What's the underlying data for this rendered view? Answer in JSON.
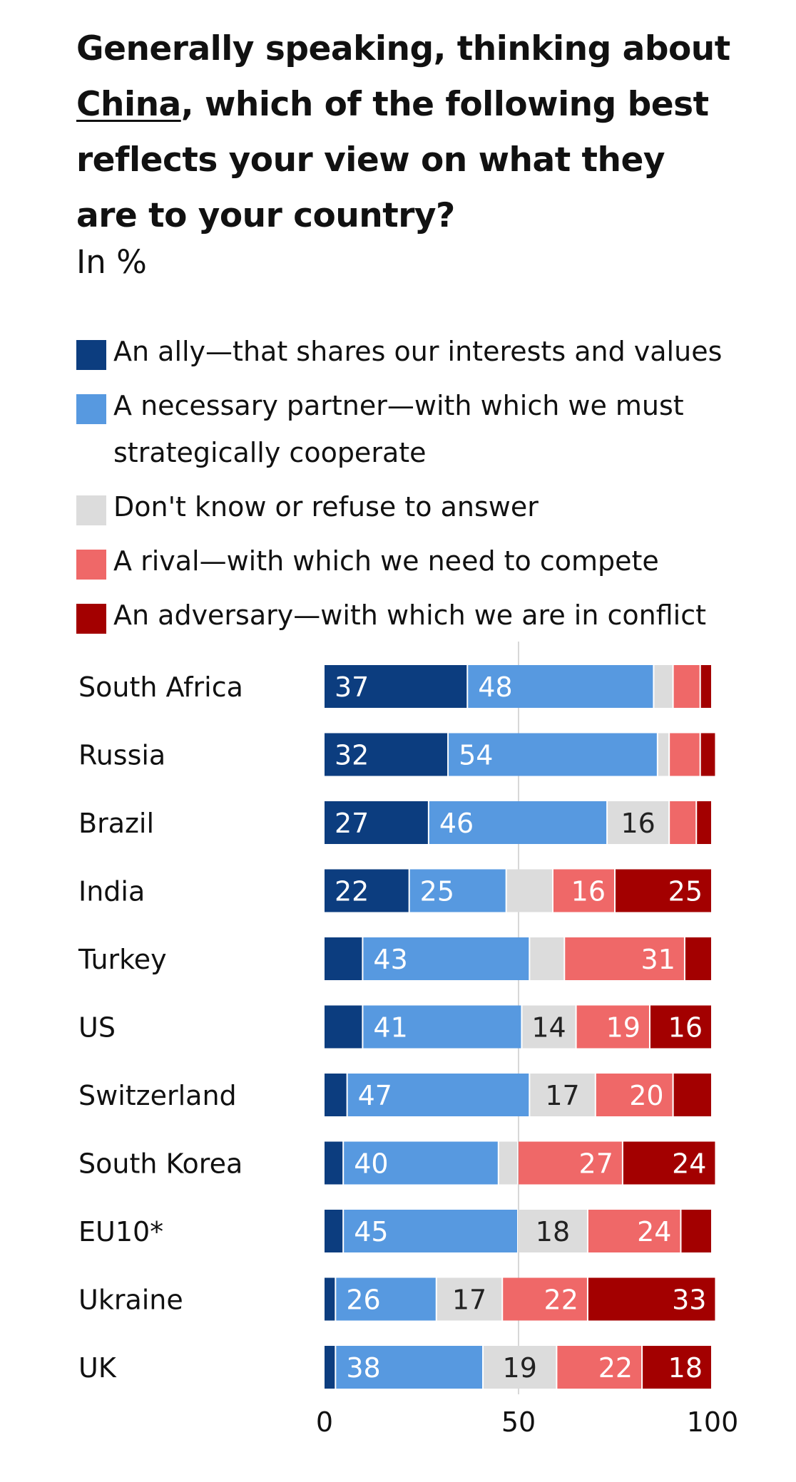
{
  "title": {
    "before": "Generally speaking, thinking about ",
    "underlined": "China",
    "after": ", which of the following best reflects your view on what they are to your country?"
  },
  "subtitle": "In %",
  "colors": {
    "ally": "#0c3d7f",
    "partner": "#5799e0",
    "dont_know": "#dcdcdc",
    "rival": "#ef6868",
    "adversary": "#a30000",
    "gridline": "#d8d8d8",
    "text_dark": "#222222",
    "text_light": "#ffffff"
  },
  "legend": [
    {
      "label": "An ally—that shares our interests and values",
      "color": "#0c3d7f"
    },
    {
      "label": "A necessary partner—with which we must strategically cooperate",
      "color": "#5799e0"
    },
    {
      "label": "Don't know or refuse to answer",
      "color": "#dcdcdc"
    },
    {
      "label": "A rival—with which we need to compete",
      "color": "#ef6868"
    },
    {
      "label": "An adversary—with which we are in conflict",
      "color": "#a30000"
    }
  ],
  "chart_data": {
    "type": "bar",
    "orientation": "horizontal",
    "stacked": true,
    "title": "Generally speaking, thinking about China, which of the following best reflects your view on what they are to your country?",
    "subtitle": "In %",
    "xlim": [
      0,
      100
    ],
    "xticks": [
      "0",
      "50",
      "100"
    ],
    "grid": true,
    "legend_position": "top",
    "categories": [
      "South Africa",
      "Russia",
      "Brazil",
      "India",
      "Turkey",
      "US",
      "Switzerland",
      "South Korea",
      "EU10*",
      "Ukraine",
      "UK"
    ],
    "series": [
      {
        "name": "An ally—that shares our interests and values",
        "color": "#0c3d7f",
        "values": [
          37,
          32,
          27,
          22,
          10,
          10,
          6,
          5,
          5,
          3,
          3
        ],
        "labels": [
          "37",
          "32",
          "27",
          "22",
          "",
          "",
          "",
          "",
          "",
          "",
          ""
        ]
      },
      {
        "name": "A necessary partner—with which we must strategically cooperate",
        "color": "#5799e0",
        "values": [
          48,
          54,
          46,
          25,
          43,
          41,
          47,
          40,
          45,
          26,
          38
        ],
        "labels": [
          "48",
          "54",
          "46",
          "25",
          "43",
          "41",
          "47",
          "40",
          "45",
          "26",
          "38"
        ]
      },
      {
        "name": "Don't know or refuse to answer",
        "color": "#dcdcdc",
        "values": [
          5,
          3,
          16,
          12,
          9,
          14,
          17,
          5,
          18,
          17,
          19
        ],
        "labels": [
          "",
          "",
          "16",
          "",
          "",
          "14",
          "17",
          "",
          "18",
          "17",
          "19"
        ]
      },
      {
        "name": "A rival—with which we need to compete",
        "color": "#ef6868",
        "values": [
          7,
          8,
          7,
          16,
          31,
          19,
          20,
          27,
          24,
          22,
          22
        ],
        "labels": [
          "",
          "",
          "",
          "16",
          "31",
          "19",
          "20",
          "27",
          "24",
          "22",
          "22"
        ]
      },
      {
        "name": "An adversary—with which we are in conflict",
        "color": "#a30000",
        "values": [
          3,
          4,
          4,
          25,
          7,
          16,
          10,
          24,
          8,
          33,
          18
        ],
        "labels": [
          "",
          "",
          "",
          "25",
          "",
          "16",
          "",
          "24",
          "",
          "33",
          "18"
        ]
      }
    ]
  }
}
